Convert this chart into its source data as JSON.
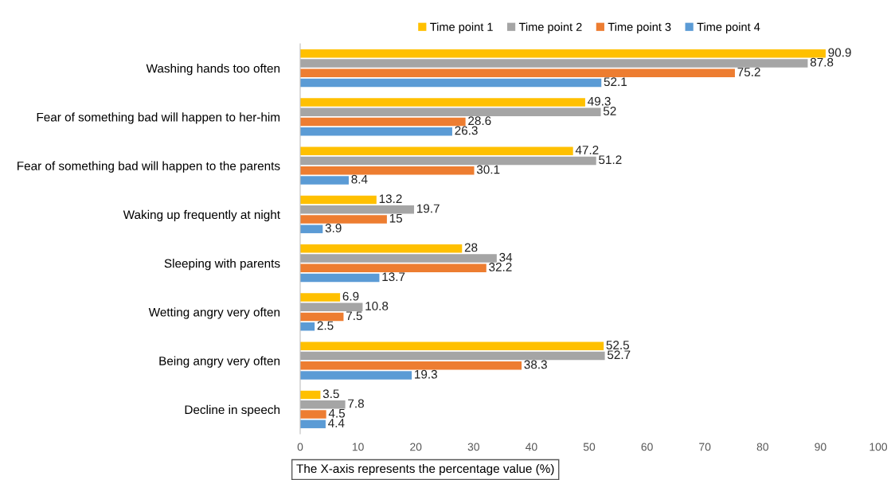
{
  "chart_data": {
    "type": "bar",
    "orientation": "horizontal",
    "categories": [
      "Washing hands too often",
      "Fear of something bad will happen to her-him",
      "Fear of something bad will happen to the parents",
      "Waking up frequently at night",
      "Sleeping with parents",
      "Wetting angry very often",
      "Being angry very often",
      "Decline in speech"
    ],
    "series": [
      {
        "name": "Time point 1",
        "color": "#ffc000",
        "values": [
          90.9,
          49.3,
          47.2,
          13.2,
          28,
          6.9,
          52.5,
          3.5
        ]
      },
      {
        "name": "Time point 2",
        "color": "#a5a5a5",
        "values": [
          87.8,
          52,
          51.2,
          19.7,
          34,
          10.8,
          52.7,
          7.8
        ]
      },
      {
        "name": "Time point 3",
        "color": "#ed7d31",
        "values": [
          75.2,
          28.6,
          30.1,
          15,
          32.2,
          7.5,
          38.3,
          4.5
        ]
      },
      {
        "name": "Time point 4",
        "color": "#5b9bd5",
        "values": [
          52.1,
          26.3,
          8.4,
          3.9,
          13.7,
          2.5,
          19.3,
          4.4
        ]
      }
    ],
    "xlim": [
      0,
      100
    ],
    "xticks": [
      0,
      10,
      20,
      30,
      40,
      50,
      60,
      70,
      80,
      90,
      100
    ],
    "data_labels": true,
    "legend": "top",
    "grid": false,
    "annotations": [
      "The X-axis represents the percentage value (%)"
    ]
  }
}
